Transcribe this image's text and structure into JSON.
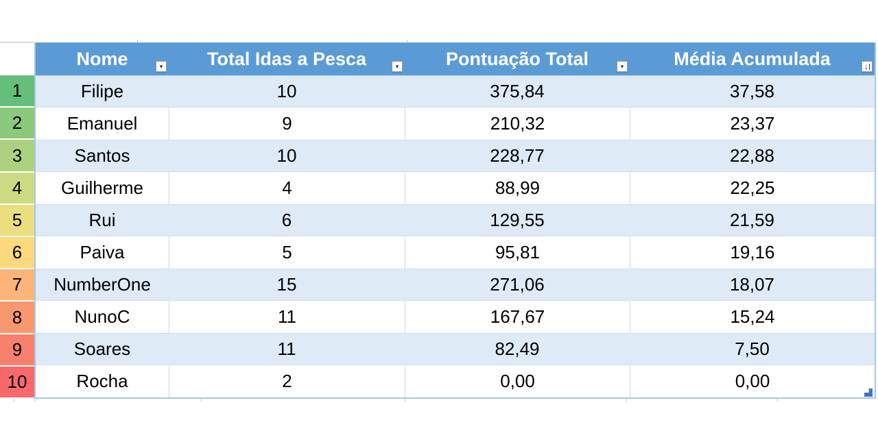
{
  "app": {
    "type": "spreadsheet-table-view"
  },
  "header": {
    "columns": [
      {
        "id": "nome",
        "label": "Nome",
        "icon": "filter-dropdown"
      },
      {
        "id": "total_idas",
        "label": "Total Idas a Pesca",
        "icon": "filter-dropdown"
      },
      {
        "id": "pontuacao",
        "label": "Pontuação Total",
        "icon": "filter-dropdown"
      },
      {
        "id": "media",
        "label": "Média Acumulada",
        "icon": "arrow-down"
      }
    ]
  },
  "rows": [
    {
      "rank": "1",
      "rank_color": "#66BE7B",
      "nome": "Filipe",
      "total_idas": "10",
      "pontuacao": "375,84",
      "media": "37,58"
    },
    {
      "rank": "2",
      "rank_color": "#8BC97D",
      "nome": "Emanuel",
      "total_idas": "9",
      "pontuacao": "210,32",
      "media": "23,37"
    },
    {
      "rank": "3",
      "rank_color": "#ACD27F",
      "nome": "Santos",
      "total_idas": "10",
      "pontuacao": "228,77",
      "media": "22,88"
    },
    {
      "rank": "4",
      "rank_color": "#CCDB81",
      "nome": "Guilherme",
      "total_idas": "4",
      "pontuacao": "88,99",
      "media": "22,25"
    },
    {
      "rank": "5",
      "rank_color": "#EBDE7E",
      "nome": "Rui",
      "total_idas": "6",
      "pontuacao": "129,55",
      "media": "21,59"
    },
    {
      "rank": "6",
      "rank_color": "#FBD97C",
      "nome": "Paiva",
      "total_idas": "5",
      "pontuacao": "95,81",
      "media": "19,16"
    },
    {
      "rank": "7",
      "rank_color": "#FCB478",
      "nome": "NumberOne",
      "total_idas": "15",
      "pontuacao": "271,06",
      "media": "18,07"
    },
    {
      "rank": "8",
      "rank_color": "#F9986F",
      "nome": "NunoC",
      "total_idas": "11",
      "pontuacao": "167,67",
      "media": "15,24"
    },
    {
      "rank": "9",
      "rank_color": "#F8806C",
      "nome": "Soares",
      "total_idas": "11",
      "pontuacao": "82,49",
      "media": "7,50"
    },
    {
      "rank": "10",
      "rank_color": "#F8696B",
      "nome": "Rocha",
      "total_idas": "2",
      "pontuacao": "0,00",
      "media": "0,00"
    }
  ],
  "icons": {
    "filter-dropdown": "▾",
    "arrow-down": "↓"
  },
  "colors": {
    "header_bg": "#5B9BD5",
    "header_text": "#FFFFFF",
    "band_row_bg": "#DEEAF6",
    "plain_row_bg": "#FFFFFF",
    "table_border": "#A4C6E7",
    "cell_divider": "#CFD7E2",
    "resize_handle": "#4472C4",
    "corner_gridline": "#BFBFBF"
  }
}
